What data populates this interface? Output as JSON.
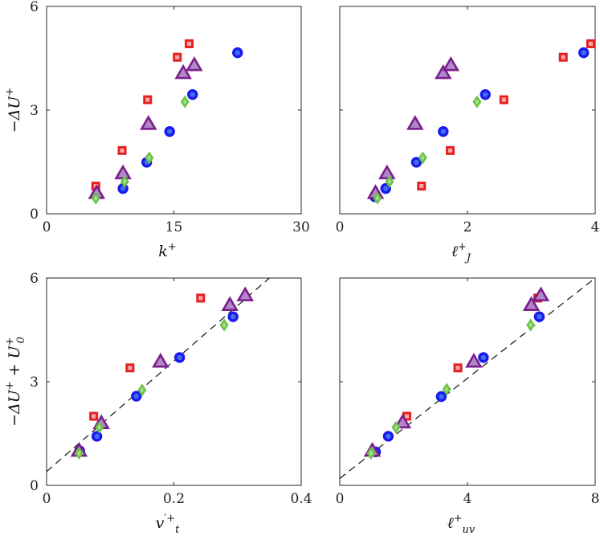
{
  "colors": {
    "circle_face": "#1a1aee",
    "circle_edge": "#1a1aee",
    "circle_core": "#3f6ff0",
    "square_face": "#e61e1e",
    "square_core": "#f3a9a9",
    "triangle_face": "#b088c8",
    "triangle_edge": "#7a1f8c",
    "diamond_face": "#6cc24a",
    "diamond_core": "#a8df8a",
    "fit_line": "#111111"
  },
  "chart_data": [
    {
      "type": "scatter",
      "panel": "top-left",
      "xlabel": {
        "base": "k",
        "sup": "+",
        "sub": ""
      },
      "ylabel": {
        "base": "−ΔU",
        "sup": "+",
        "tail": ""
      },
      "xlim": [
        0,
        30
      ],
      "ylim": [
        0,
        6
      ],
      "xticks": [
        0,
        15,
        30
      ],
      "yticks": [
        0,
        3,
        6
      ],
      "xtick_labels": [
        "0",
        "15",
        "30"
      ],
      "ytick_labels": [
        "0",
        "3",
        "6"
      ],
      "show_xtick_labels": true,
      "show_ytick_labels": true,
      "series": [
        {
          "marker": "circle",
          "x": [
            9.0,
            11.8,
            14.5,
            17.2,
            22.5
          ],
          "y": [
            0.73,
            1.49,
            2.38,
            3.45,
            4.66
          ]
        },
        {
          "marker": "square",
          "x": [
            5.8,
            8.9,
            11.9,
            15.4,
            16.8
          ],
          "y": [
            0.8,
            1.83,
            3.3,
            4.53,
            4.92
          ]
        },
        {
          "marker": "triangle",
          "x": [
            5.9,
            9.0,
            12.0,
            16.1,
            17.4
          ],
          "y": [
            0.6,
            1.17,
            2.6,
            4.07,
            4.3
          ]
        },
        {
          "marker": "diamond",
          "x": [
            5.8,
            9.2,
            12.1,
            16.3
          ],
          "y": [
            0.45,
            0.93,
            1.62,
            3.24
          ]
        }
      ]
    },
    {
      "type": "scatter",
      "panel": "top-right",
      "xlabel": {
        "base": "ℓ",
        "sup": "+",
        "sub": "J"
      },
      "ylabel": null,
      "xlim": [
        0,
        4
      ],
      "ylim": [
        0,
        6
      ],
      "xticks": [
        0,
        2,
        4
      ],
      "yticks": [
        0,
        3,
        6
      ],
      "xtick_labels": [
        "0",
        "2",
        "4"
      ],
      "ytick_labels": [
        "0",
        "3",
        "6"
      ],
      "show_xtick_labels": true,
      "show_ytick_labels": false,
      "series": [
        {
          "marker": "circle",
          "x": [
            0.55,
            0.72,
            1.2,
            1.62,
            2.28,
            3.82
          ],
          "y": [
            0.49,
            0.73,
            1.49,
            2.38,
            3.45,
            4.66
          ]
        },
        {
          "marker": "square",
          "x": [
            1.28,
            1.73,
            2.57,
            3.5,
            3.93
          ],
          "y": [
            0.8,
            1.83,
            3.3,
            4.53,
            4.92
          ]
        },
        {
          "marker": "triangle",
          "x": [
            0.56,
            0.74,
            1.18,
            1.62,
            1.74
          ],
          "y": [
            0.6,
            1.17,
            2.6,
            4.07,
            4.3
          ]
        },
        {
          "marker": "diamond",
          "x": [
            0.59,
            0.78,
            1.3,
            2.15
          ],
          "y": [
            0.45,
            0.93,
            1.62,
            3.24
          ]
        }
      ]
    },
    {
      "type": "scatter",
      "panel": "bottom-left",
      "xlabel": {
        "base": "v",
        "sup": "′+",
        "sub": "t"
      },
      "ylabel": {
        "base": "−ΔU",
        "sup": "+",
        "tail": "U",
        "tail_sup": "+",
        "tail_sub": "0",
        "joiner": " + "
      },
      "xlim": [
        0,
        0.4
      ],
      "ylim": [
        0,
        6
      ],
      "xticks": [
        0,
        0.2,
        0.4
      ],
      "yticks": [
        0,
        3,
        6
      ],
      "xtick_labels": [
        "0",
        "0.2",
        "0.4"
      ],
      "ytick_labels": [
        "0",
        "3",
        "6"
      ],
      "show_xtick_labels": true,
      "show_ytick_labels": true,
      "fit_line": {
        "x": [
          0,
          0.35
        ],
        "y": [
          0.4,
          6.0
        ]
      },
      "series": [
        {
          "marker": "circle",
          "x": [
            0.052,
            0.079,
            0.141,
            0.209,
            0.293
          ],
          "y": [
            1.0,
            1.42,
            2.58,
            3.7,
            4.88
          ]
        },
        {
          "marker": "square",
          "x": [
            0.074,
            0.131,
            0.242
          ],
          "y": [
            2.0,
            3.4,
            5.42
          ]
        },
        {
          "marker": "triangle",
          "x": [
            0.051,
            0.086,
            0.179,
            0.288,
            0.312
          ],
          "y": [
            1.0,
            1.8,
            3.58,
            5.22,
            5.5
          ]
        },
        {
          "marker": "diamond",
          "x": [
            0.051,
            0.083,
            0.15,
            0.279
          ],
          "y": [
            0.93,
            1.68,
            2.76,
            4.64
          ]
        }
      ]
    },
    {
      "type": "scatter",
      "panel": "bottom-right",
      "xlabel": {
        "base": "ℓ",
        "sup": "+",
        "sub": "uv"
      },
      "ylabel": null,
      "xlim": [
        0,
        8
      ],
      "ylim": [
        0,
        6
      ],
      "xticks": [
        0,
        4,
        8
      ],
      "yticks": [
        0,
        3,
        6
      ],
      "xtick_labels": [
        "0",
        "4",
        "8"
      ],
      "ytick_labels": [
        "0",
        "3",
        "6"
      ],
      "show_xtick_labels": true,
      "show_ytick_labels": false,
      "fit_line": {
        "x": [
          0,
          8
        ],
        "y": [
          0.2,
          6.0
        ]
      },
      "series": [
        {
          "marker": "circle",
          "x": [
            1.12,
            1.52,
            3.18,
            4.5,
            6.25
          ],
          "y": [
            0.97,
            1.42,
            2.57,
            3.7,
            4.88
          ]
        },
        {
          "marker": "square",
          "x": [
            2.1,
            3.7,
            6.2
          ],
          "y": [
            2.0,
            3.4,
            5.42
          ]
        },
        {
          "marker": "triangle",
          "x": [
            1.02,
            1.97,
            4.2,
            6.0,
            6.3
          ],
          "y": [
            1.0,
            1.82,
            3.58,
            5.22,
            5.5
          ]
        },
        {
          "marker": "diamond",
          "x": [
            0.98,
            1.76,
            3.35,
            5.98
          ],
          "y": [
            0.93,
            1.68,
            2.78,
            4.64
          ]
        }
      ]
    }
  ]
}
